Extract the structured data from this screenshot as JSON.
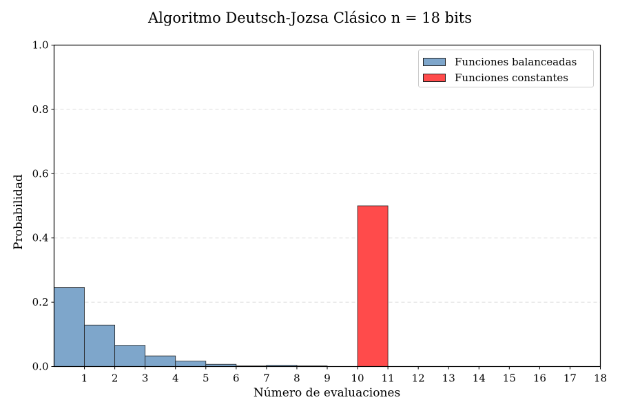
{
  "chart_data": {
    "type": "bar",
    "title": "Algoritmo Deutsch-Jozsa Clásico n = 18 bits",
    "xlabel": "Número de evaluaciones",
    "ylabel": "Probabilidad",
    "xlim": [
      0,
      18
    ],
    "ylim": [
      0,
      1.0
    ],
    "x_ticks": [
      1,
      2,
      3,
      4,
      5,
      6,
      7,
      8,
      9,
      10,
      11,
      12,
      13,
      14,
      15,
      16,
      17,
      18
    ],
    "y_ticks": [
      "0.0",
      "0.2",
      "0.4",
      "0.6",
      "0.8",
      "1.0"
    ],
    "grid": "horizontal dashed",
    "legend_position": "top-right",
    "series": [
      {
        "name": "Funciones balanceadas",
        "color": "#7ea6cb",
        "bins": [
          [
            0,
            1
          ],
          [
            1,
            2
          ],
          [
            2,
            3
          ],
          [
            3,
            4
          ],
          [
            4,
            5
          ],
          [
            5,
            6
          ],
          [
            6,
            7
          ],
          [
            7,
            8
          ],
          [
            8,
            9
          ]
        ],
        "values": [
          0.246,
          0.129,
          0.066,
          0.033,
          0.017,
          0.007,
          0.002,
          0.004,
          0.002
        ]
      },
      {
        "name": "Funciones constantes",
        "color": "#ff4b4b",
        "bins": [
          [
            10,
            11
          ]
        ],
        "values": [
          0.5
        ]
      }
    ]
  }
}
